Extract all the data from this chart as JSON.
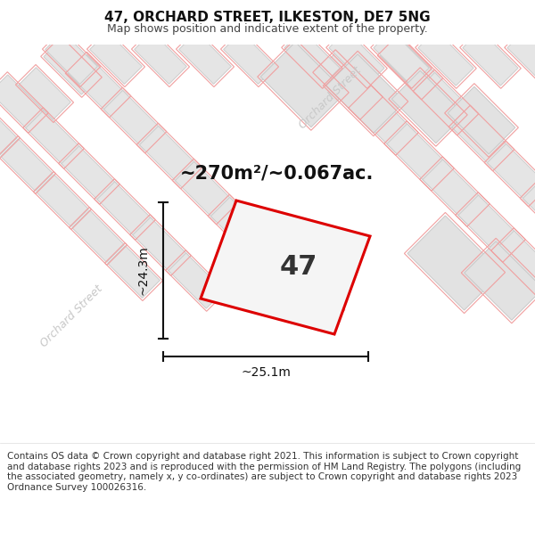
{
  "title": "47, ORCHARD STREET, ILKESTON, DE7 5NG",
  "subtitle": "Map shows position and indicative extent of the property.",
  "area_label": "~270m²/~0.067ac.",
  "property_number": "47",
  "dim_width": "~25.1m",
  "dim_height": "~24.3m",
  "street_label": "Orchard Street",
  "copyright_text": "Contains OS data © Crown copyright and database right 2021. This information is subject to Crown copyright and database rights 2023 and is reproduced with the permission of HM Land Registry. The polygons (including the associated geometry, namely x, y co-ordinates) are subject to Crown copyright and database rights 2023 Ordnance Survey 100026316.",
  "map_bg": "#f7f7f7",
  "building_fill": "#e8e8e8",
  "building_edge": "#cccccc",
  "pink_line": "#f0a0a0",
  "property_line": "#dd0000",
  "dim_line_color": "#111111",
  "street_text_color": "#cccccc",
  "area_text_color": "#111111",
  "title_fontsize": 11,
  "subtitle_fontsize": 9,
  "copyright_fontsize": 7.5
}
